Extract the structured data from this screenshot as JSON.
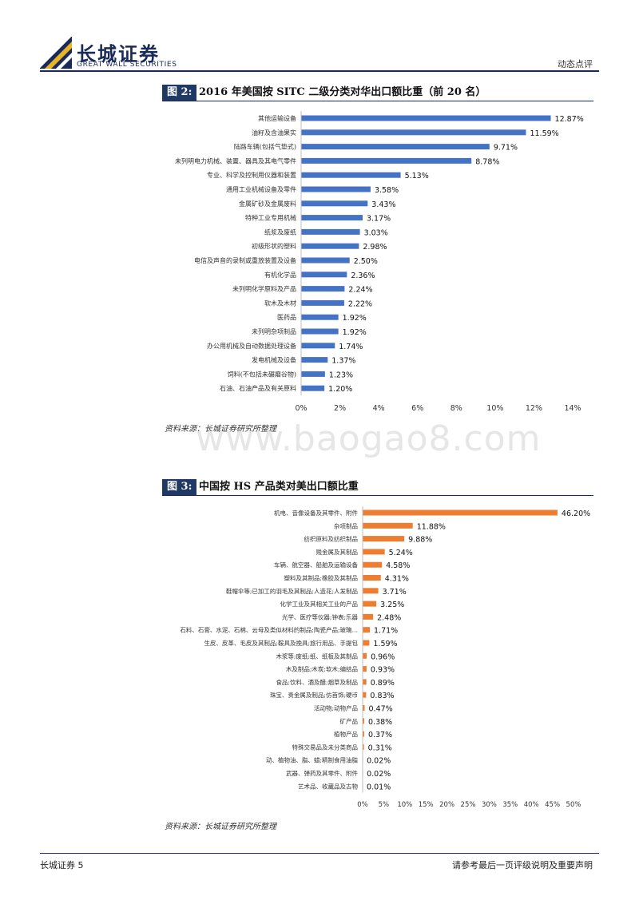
{
  "header": {
    "brand_cn": "长城证券",
    "brand_en": "GREAT WALL SECURITIES",
    "report_type": "动态点评",
    "brand_color": "#1a2a5a"
  },
  "watermark": "www.baogao8.com",
  "figure2": {
    "tag": "图 2:",
    "title": "2016 年美国按 SITC 二级分类对华出口额比重（前 20 名）",
    "source": "资料来源：长城证券研究所整理",
    "chart_data": {
      "type": "bar",
      "orientation": "horizontal",
      "color": "#4472c4",
      "xlim": [
        0,
        14
      ],
      "xticks": [
        "0%",
        "2%",
        "4%",
        "6%",
        "8%",
        "10%",
        "12%",
        "14%"
      ],
      "categories": [
        "其他运输设备",
        "油籽及含油果实",
        "陆路车辆(包括气垫式)",
        "未列明电力机械、装置、器具及其电气零件",
        "专业、科学及控制用仪器和装置",
        "通用工业机械设备及零件",
        "金属矿砂及金属废料",
        "特种工业专用机械",
        "纸浆及废纸",
        "初级形状的塑料",
        "电信及声音的录制或重放装置及设备",
        "有机化学品",
        "未列明化学原料及产品",
        "软木及木材",
        "医药品",
        "未列明杂项制品",
        "办公用机械及自动数据处理设备",
        "发电机械及设备",
        "饲料(不包括未碾磨谷物)",
        "石油、石油产品及有关原料"
      ],
      "values": [
        12.87,
        11.59,
        9.71,
        8.78,
        5.13,
        3.58,
        3.43,
        3.17,
        3.03,
        2.98,
        2.5,
        2.36,
        2.24,
        2.22,
        1.92,
        1.92,
        1.74,
        1.37,
        1.23,
        1.2
      ],
      "labels": [
        "12.87%",
        "11.59%",
        "9.71%",
        "8.78%",
        "5.13%",
        "3.58%",
        "3.43%",
        "3.17%",
        "3.03%",
        "2.98%",
        "2.50%",
        "2.36%",
        "2.24%",
        "2.22%",
        "1.92%",
        "1.92%",
        "1.74%",
        "1.37%",
        "1.23%",
        "1.20%"
      ]
    }
  },
  "figure3": {
    "tag": "图 3:",
    "title": "中国按 HS 产品类对美出口额比重",
    "source": "资料来源：长城证券研究所整理",
    "chart_data": {
      "type": "bar",
      "orientation": "horizontal",
      "color": "#ed7d31",
      "xlim": [
        0,
        50
      ],
      "xticks": [
        "0%",
        "5%",
        "10%",
        "15%",
        "20%",
        "25%",
        "30%",
        "35%",
        "40%",
        "45%",
        "50%"
      ],
      "categories": [
        "机电、音像设备及其零件、附件",
        "杂项制品",
        "纺织原料及纺织制品",
        "贱金属及其制品",
        "车辆、航空器、船舶及运输设备",
        "塑料及其制品;橡胶及其制品",
        "鞋帽伞等;已加工的羽毛及其制品;人造花;人发制品",
        "化学工业及其相关工业的产品",
        "光学、医疗等仪器;钟表;乐器",
        "石料、石膏、水泥、石棉、云母及类似材料的制品;陶瓷产品;玻璃…",
        "生皮、皮革、毛皮及其制品;鞍具及挽具;旅行用品、手提包",
        "木浆等;废纸;纸、纸板及其制品",
        "木及制品;木炭;软木;编结品",
        "食品;饮料、酒及醋;烟草及制品",
        "珠宝、贵金属及制品;仿首饰;硬币",
        "活动物;动物产品",
        "矿产品",
        "植物产品",
        "特殊交易品及未分类商品",
        "动、植物油、脂、蜡;精制食用油脂",
        "武器、弹药及其零件、附件",
        "艺术品、收藏品及古物"
      ],
      "values": [
        46.2,
        11.88,
        9.88,
        5.24,
        4.58,
        4.31,
        3.71,
        3.25,
        2.48,
        1.71,
        1.59,
        0.96,
        0.93,
        0.89,
        0.83,
        0.47,
        0.38,
        0.37,
        0.31,
        0.02,
        0.02,
        0.01
      ],
      "labels": [
        "46.20%",
        "11.88%",
        "9.88%",
        "5.24%",
        "4.58%",
        "4.31%",
        "3.71%",
        "3.25%",
        "2.48%",
        "1.71%",
        "1.59%",
        "0.96%",
        "0.93%",
        "0.89%",
        "0.83%",
        "0.47%",
        "0.38%",
        "0.37%",
        "0.31%",
        "0.02%",
        "0.02%",
        "0.01%"
      ]
    }
  },
  "footer": {
    "left": "长城证券 5",
    "right": "请参考最后一页评级说明及重要声明"
  }
}
